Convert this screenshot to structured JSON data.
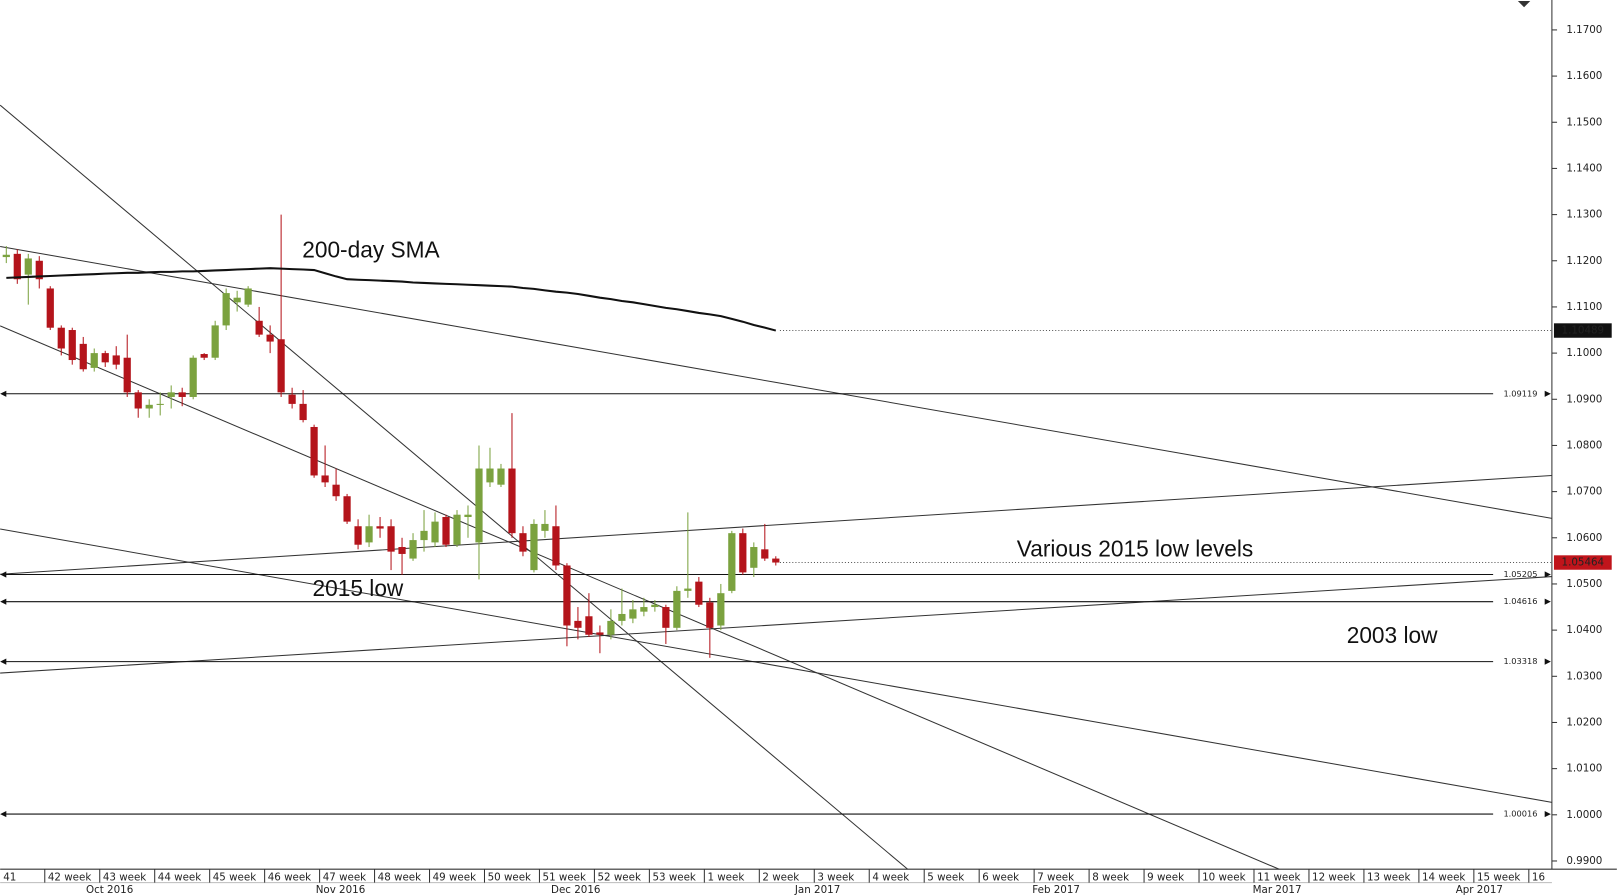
{
  "chart_data": {
    "type": "candlestick",
    "ohlc": {
      "open": [
        1.1208,
        1.1215,
        1.117,
        1.12,
        1.114,
        1.1055,
        1.105,
        1.102,
        1.0968,
        1.1,
        1.0995,
        1.099,
        1.0915,
        1.088,
        1.0888,
        1.0905,
        1.0915,
        1.0905,
        1.0998,
        1.099,
        1.106,
        1.111,
        1.1105,
        1.107,
        1.104,
        1.103,
        1.091,
        1.089,
        1.084,
        1.0735,
        1.0715,
        1.069,
        1.0625,
        1.059,
        1.0625,
        1.0625,
        1.058,
        1.0555,
        1.0595,
        1.059,
        1.0645,
        1.0585,
        1.0645,
        1.059,
        1.072,
        1.0715,
        1.075,
        1.061,
        1.053,
        1.0615,
        1.0625,
        1.054,
        1.042,
        1.043,
        1.0395,
        1.039,
        1.042,
        1.0425,
        1.044,
        1.045,
        1.045,
        1.0405,
        1.0485,
        1.0505,
        1.046,
        1.041,
        1.0485,
        1.061,
        1.0535,
        1.0575,
        1.0555
      ],
      "high": [
        1.1232,
        1.1225,
        1.1215,
        1.121,
        1.1145,
        1.106,
        1.1055,
        1.1035,
        1.101,
        1.1005,
        1.1015,
        1.104,
        1.092,
        1.09,
        1.0915,
        1.093,
        1.0925,
        1.0995,
        1.1,
        1.107,
        1.114,
        1.1135,
        1.1145,
        1.11,
        1.106,
        1.13,
        1.0925,
        1.092,
        1.0845,
        1.08,
        1.075,
        1.0695,
        1.064,
        1.065,
        1.0645,
        1.064,
        1.06,
        1.061,
        1.066,
        1.0655,
        1.065,
        1.066,
        1.067,
        1.08,
        1.0795,
        1.076,
        1.087,
        1.0625,
        1.064,
        1.066,
        1.067,
        1.0545,
        1.045,
        1.048,
        1.041,
        1.0445,
        1.049,
        1.0465,
        1.047,
        1.0465,
        1.0455,
        1.0495,
        1.0655,
        1.0515,
        1.047,
        1.05,
        1.0615,
        1.062,
        1.059,
        1.063,
        1.056
      ],
      "low": [
        1.1195,
        1.115,
        1.1105,
        1.114,
        1.105,
        1.0995,
        1.0975,
        1.096,
        1.096,
        1.097,
        1.0965,
        1.0905,
        1.086,
        1.086,
        1.0865,
        1.088,
        1.0885,
        1.09,
        1.0985,
        1.0985,
        1.105,
        1.109,
        1.11,
        1.1035,
        1.1,
        1.0905,
        1.088,
        1.085,
        1.073,
        1.071,
        1.068,
        1.063,
        1.0575,
        1.058,
        1.06,
        1.053,
        1.052,
        1.055,
        1.057,
        1.058,
        1.058,
        1.058,
        1.06,
        1.051,
        1.071,
        1.071,
        1.06,
        1.056,
        1.0525,
        1.06,
        1.053,
        1.0365,
        1.038,
        1.0385,
        1.035,
        1.038,
        1.041,
        1.0415,
        1.043,
        1.044,
        1.037,
        1.04,
        1.047,
        1.045,
        1.034,
        1.04,
        1.048,
        1.052,
        1.0515,
        1.055,
        1.054
      ],
      "close": [
        1.1213,
        1.116,
        1.1205,
        1.116,
        1.1055,
        1.101,
        1.0985,
        1.0965,
        1.1,
        1.098,
        1.0975,
        1.0915,
        1.088,
        1.0888,
        1.089,
        1.0915,
        1.0905,
        1.099,
        1.099,
        1.106,
        1.113,
        1.112,
        1.114,
        1.104,
        1.1025,
        1.0915,
        1.089,
        1.0855,
        1.0735,
        1.072,
        1.069,
        1.0635,
        1.0585,
        1.0625,
        1.062,
        1.057,
        1.0565,
        1.0595,
        1.0615,
        1.0635,
        1.0585,
        1.065,
        1.065,
        1.075,
        1.075,
        1.075,
        1.061,
        1.057,
        1.063,
        1.063,
        1.054,
        1.041,
        1.0405,
        1.039,
        1.039,
        1.042,
        1.0435,
        1.0445,
        1.045,
        1.0455,
        1.0405,
        1.0485,
        1.049,
        1.0455,
        1.0405,
        1.048,
        1.061,
        1.0525,
        1.058,
        1.0555,
        1.05464
      ]
    },
    "up_color": "#7ba23f",
    "down_color": "#b4141b",
    "sma": {
      "name": "200-day SMA",
      "color": "#111111",
      "values": [
        1.1163,
        1.1164,
        1.1165,
        1.1166,
        1.1167,
        1.1168,
        1.1169,
        1.117,
        1.1171,
        1.1172,
        1.1173,
        1.1174,
        1.1174,
        1.1175,
        1.1176,
        1.1176,
        1.1177,
        1.1177,
        1.1178,
        1.1179,
        1.118,
        1.1181,
        1.1182,
        1.1183,
        1.1184,
        1.1183,
        1.1182,
        1.1181,
        1.118,
        1.1173,
        1.1166,
        1.116,
        1.1159,
        1.1158,
        1.1157,
        1.1156,
        1.1155,
        1.1153,
        1.1152,
        1.1151,
        1.115,
        1.1149,
        1.1148,
        1.1147,
        1.1146,
        1.1145,
        1.1144,
        1.1141,
        1.1139,
        1.1136,
        1.1133,
        1.1131,
        1.1128,
        1.1124,
        1.112,
        1.1117,
        1.1113,
        1.111,
        1.1106,
        1.1102,
        1.1098,
        1.1095,
        1.1091,
        1.1087,
        1.1084,
        1.108,
        1.1074,
        1.1068,
        1.1061,
        1.1055,
        1.10489
      ]
    },
    "trendlines": [
      {
        "x": [
          -0.56,
          82.0
        ],
        "y": [
          1.1537,
          0.9882
        ]
      },
      {
        "x": [
          -0.56,
          115.8
        ],
        "y": [
          1.1059,
          0.9882
        ]
      },
      {
        "x": [
          -0.56,
          140.6
        ],
        "y": [
          1.1231,
          1.0642
        ]
      },
      {
        "x": [
          -0.56,
          140.6
        ],
        "y": [
          1.0619,
          1.0027
        ]
      },
      {
        "x": [
          -0.56,
          140.6
        ],
        "y": [
          1.0521,
          1.0735
        ]
      },
      {
        "x": [
          -0.56,
          140.6
        ],
        "y": [
          1.0307,
          1.0516
        ]
      }
    ],
    "levels": [
      1.09119,
      1.05205,
      1.04616,
      1.03318,
      1.00016
    ],
    "price_labels": [
      1.10489,
      1.05464
    ],
    "price_label_colors": [
      "#111111",
      "#c0141b"
    ],
    "annotations": [
      "Various 2015 low levels",
      "2015 low",
      "2003 low"
    ],
    "xlim": [
      -0.56,
      140.6
    ],
    "ylim": [
      0.98822,
      1.17648
    ],
    "yticks": [
      {
        "value": 0.99,
        "label": "0.9900"
      },
      {
        "value": 1.0,
        "label": "1.0000"
      },
      {
        "value": 1.01,
        "label": "1.0100"
      },
      {
        "value": 1.02,
        "label": "1.0200"
      },
      {
        "value": 1.03,
        "label": "1.0300"
      },
      {
        "value": 1.04,
        "label": "1.0400"
      },
      {
        "value": 1.05,
        "label": "1.0500"
      },
      {
        "value": 1.06,
        "label": "1.0600"
      },
      {
        "value": 1.07,
        "label": "1.0700"
      },
      {
        "value": 1.08,
        "label": "1.0800"
      },
      {
        "value": 1.09,
        "label": "1.0900"
      },
      {
        "value": 1.1,
        "label": "1.1000"
      },
      {
        "value": 1.11,
        "label": "1.1100"
      },
      {
        "value": 1.12,
        "label": "1.1200"
      },
      {
        "value": 1.13,
        "label": "1.1300"
      },
      {
        "value": 1.14,
        "label": "1.1400"
      },
      {
        "value": 1.15,
        "label": "1.1500"
      },
      {
        "value": 1.16,
        "label": "1.1600"
      },
      {
        "value": 1.17,
        "label": "1.1700"
      }
    ],
    "xticks": [
      {
        "value": -1.5,
        "label": "41"
      },
      {
        "value": 3.5,
        "label": "42 week"
      },
      {
        "value": 8.5,
        "label": "43 week"
      },
      {
        "value": 13.5,
        "label": "44 week"
      },
      {
        "value": 18.5,
        "label": "45 week"
      },
      {
        "value": 23.5,
        "label": "46 week"
      },
      {
        "value": 28.5,
        "label": "47 week"
      },
      {
        "value": 33.5,
        "label": "48 week"
      },
      {
        "value": 38.5,
        "label": "49 week"
      },
      {
        "value": 43.5,
        "label": "50 week"
      },
      {
        "value": 48.5,
        "label": "51 week"
      },
      {
        "value": 53.5,
        "label": "52 week"
      },
      {
        "value": 58.5,
        "label": "53 week"
      },
      {
        "value": 63.5,
        "label": "1 week"
      },
      {
        "value": 68.5,
        "label": "2 week"
      },
      {
        "value": 73.5,
        "label": "3 week"
      },
      {
        "value": 78.5,
        "label": "4 week"
      },
      {
        "value": 83.5,
        "label": "5 week"
      },
      {
        "value": 88.5,
        "label": "6 week"
      },
      {
        "value": 93.5,
        "label": "7 week"
      },
      {
        "value": 98.5,
        "label": "8 week"
      },
      {
        "value": 103.5,
        "label": "9 week"
      },
      {
        "value": 108.5,
        "label": "10 week"
      },
      {
        "value": 113.5,
        "label": "11 week"
      },
      {
        "value": 118.5,
        "label": "12 week"
      },
      {
        "value": 123.5,
        "label": "13 week"
      },
      {
        "value": 128.5,
        "label": "14 week"
      },
      {
        "value": 133.5,
        "label": "15 week"
      },
      {
        "value": 138.5,
        "label": "16"
      }
    ],
    "months": [
      {
        "value": 9.4,
        "label": "Oct 2016"
      },
      {
        "value": 30.4,
        "label": "Nov 2016"
      },
      {
        "value": 51.8,
        "label": "Dec 2016"
      },
      {
        "value": 73.8,
        "label": "Jan 2017"
      },
      {
        "value": 95.5,
        "label": "Feb 2017"
      },
      {
        "value": 115.6,
        "label": "Mar 2017"
      },
      {
        "value": 134.0,
        "label": "Apr 2017"
      }
    ]
  }
}
